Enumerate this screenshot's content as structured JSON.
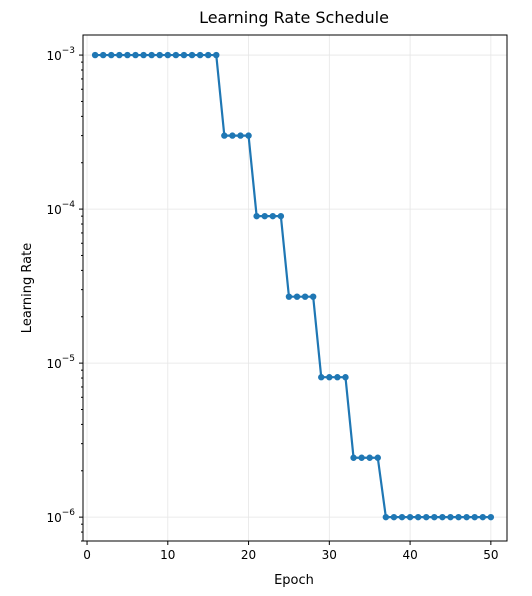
{
  "chart_data": {
    "type": "line",
    "title": "Learning Rate Schedule",
    "xlabel": "Epoch",
    "ylabel": "Learning Rate",
    "yscale": "log",
    "xlim": [
      -0.5,
      52
    ],
    "ylim": [
      7e-07,
      0.00135
    ],
    "xticks": [
      0,
      10,
      20,
      30,
      40,
      50
    ],
    "yticks": [
      {
        "value": 1e-06,
        "base": "10",
        "exp": "−6"
      },
      {
        "value": 1e-05,
        "base": "10",
        "exp": "−5"
      },
      {
        "value": 0.0001,
        "base": "10",
        "exp": "−4"
      },
      {
        "value": 0.001,
        "base": "10",
        "exp": "−3"
      }
    ],
    "grid": true,
    "series": [
      {
        "color": "#1f77b4",
        "x": [
          1,
          2,
          3,
          4,
          5,
          6,
          7,
          8,
          9,
          10,
          11,
          12,
          13,
          14,
          15,
          16,
          17,
          18,
          19,
          20,
          21,
          22,
          23,
          24,
          25,
          26,
          27,
          28,
          29,
          30,
          31,
          32,
          33,
          34,
          35,
          36,
          37,
          38,
          39,
          40,
          41,
          42,
          43,
          44,
          45,
          46,
          47,
          48,
          49,
          50
        ],
        "y": [
          0.001,
          0.001,
          0.001,
          0.001,
          0.001,
          0.001,
          0.001,
          0.001,
          0.001,
          0.001,
          0.001,
          0.001,
          0.001,
          0.001,
          0.001,
          0.001,
          0.0003,
          0.0003,
          0.0003,
          0.0003,
          9e-05,
          9e-05,
          9e-05,
          9e-05,
          2.7e-05,
          2.7e-05,
          2.7e-05,
          2.7e-05,
          8.1e-06,
          8.1e-06,
          8.1e-06,
          8.1e-06,
          2.43e-06,
          2.43e-06,
          2.43e-06,
          2.43e-06,
          1e-06,
          1e-06,
          1e-06,
          1e-06,
          1e-06,
          1e-06,
          1e-06,
          1e-06,
          1e-06,
          1e-06,
          1e-06,
          1e-06,
          1e-06,
          1e-06
        ]
      }
    ]
  }
}
